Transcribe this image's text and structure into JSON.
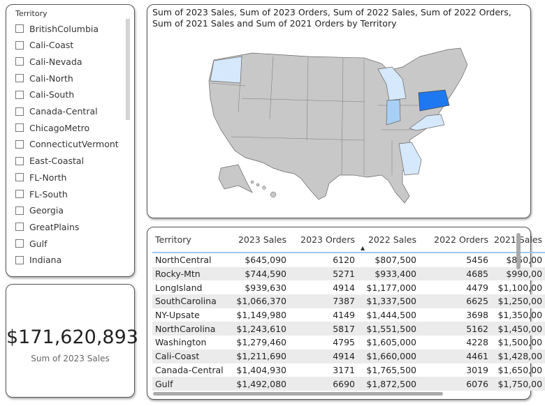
{
  "slicer": {
    "title": "Territory",
    "items": [
      "BritishColumbia",
      "Cali-Coast",
      "Cali-Nevada",
      "Cali-North",
      "Cali-South",
      "Canada-Central",
      "ChicagoMetro",
      "ConnecticutVermont",
      "East-Coastal",
      "FL-North",
      "FL-South",
      "Georgia",
      "GreatPlains",
      "Gulf",
      "Indiana"
    ]
  },
  "kpi": {
    "value": "$171,620,893",
    "label": "Sum of 2023 Sales"
  },
  "map": {
    "title": "Sum of 2023 Sales, Sum of 2023 Orders, Sum of 2022 Sales, Sum of 2022 Orders, Sum of 2021 Sales and Sum of 2021 Orders by Territory",
    "colors": {
      "base": "#c8c8c8",
      "light": "#d6e8fb",
      "medium": "#a8cff5",
      "strong": "#1e78f0"
    }
  },
  "table": {
    "headers": [
      "Territory",
      "2023 Sales",
      "2023 Orders",
      "2022 Sales",
      "2022 Orders",
      "2021 Sales"
    ],
    "sort_column": "2022 Sales",
    "sort_icon": "sort-ascending-icon",
    "rows": [
      [
        "NorthCentral",
        "$645,090",
        "6120",
        "$807,500",
        "5456",
        "$850,00"
      ],
      [
        "Rocky-Mtn",
        "$744,590",
        "5271",
        "$933,400",
        "4685",
        "$990,00"
      ],
      [
        "LongIsland",
        "$939,630",
        "4914",
        "$1,177,000",
        "4479",
        "$1,100,00"
      ],
      [
        "SouthCarolina",
        "$1,066,370",
        "7387",
        "$1,337,500",
        "6625",
        "$1,250,00"
      ],
      [
        "NY-Upsate",
        "$1,149,980",
        "4149",
        "$1,444,500",
        "3698",
        "$1,350,00"
      ],
      [
        "NorthCarolina",
        "$1,243,610",
        "5817",
        "$1,551,500",
        "5162",
        "$1,450,00"
      ],
      [
        "Washington",
        "$1,279,460",
        "4795",
        "$1,605,000",
        "4228",
        "$1,500,00"
      ],
      [
        "Cali-Coast",
        "$1,211,690",
        "4914",
        "$1,660,000",
        "4461",
        "$1,428,00"
      ],
      [
        "Canada-Central",
        "$1,404,930",
        "3171",
        "$1,765,500",
        "3019",
        "$1,650,00"
      ],
      [
        "Gulf",
        "$1,492,080",
        "6690",
        "$1,872,500",
        "6076",
        "$1,750,00"
      ]
    ]
  }
}
